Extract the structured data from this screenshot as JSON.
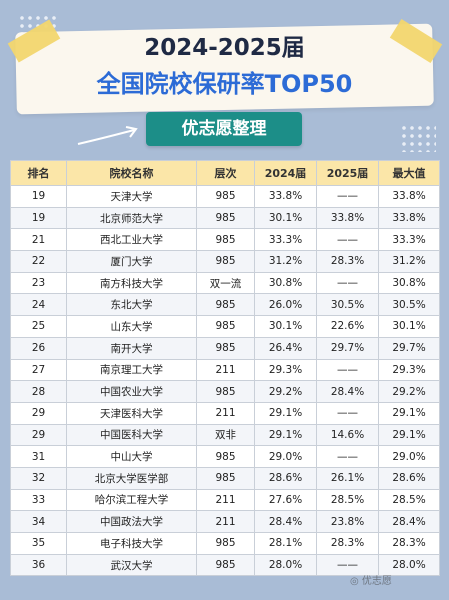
{
  "header": {
    "title_line1": "2024-2025届",
    "title_line2": "全国院校保研率TOP50",
    "subtitle": "优志愿整理"
  },
  "table": {
    "columns": [
      "排名",
      "院校名称",
      "层次",
      "2024届",
      "2025届",
      "最大值"
    ],
    "rows": [
      [
        "19",
        "天津大学",
        "985",
        "33.8%",
        "——",
        "33.8%"
      ],
      [
        "19",
        "北京师范大学",
        "985",
        "30.1%",
        "33.8%",
        "33.8%"
      ],
      [
        "21",
        "西北工业大学",
        "985",
        "33.3%",
        "——",
        "33.3%"
      ],
      [
        "22",
        "厦门大学",
        "985",
        "31.2%",
        "28.3%",
        "31.2%"
      ],
      [
        "23",
        "南方科技大学",
        "双一流",
        "30.8%",
        "——",
        "30.8%"
      ],
      [
        "24",
        "东北大学",
        "985",
        "26.0%",
        "30.5%",
        "30.5%"
      ],
      [
        "25",
        "山东大学",
        "985",
        "30.1%",
        "22.6%",
        "30.1%"
      ],
      [
        "26",
        "南开大学",
        "985",
        "26.4%",
        "29.7%",
        "29.7%"
      ],
      [
        "27",
        "南京理工大学",
        "211",
        "29.3%",
        "——",
        "29.3%"
      ],
      [
        "28",
        "中国农业大学",
        "985",
        "29.2%",
        "28.4%",
        "29.2%"
      ],
      [
        "29",
        "天津医科大学",
        "211",
        "29.1%",
        "——",
        "29.1%"
      ],
      [
        "29",
        "中国医科大学",
        "双非",
        "29.1%",
        "14.6%",
        "29.1%"
      ],
      [
        "31",
        "中山大学",
        "985",
        "29.0%",
        "——",
        "29.0%"
      ],
      [
        "32",
        "北京大学医学部",
        "985",
        "28.6%",
        "26.1%",
        "28.6%"
      ],
      [
        "33",
        "哈尔滨工程大学",
        "211",
        "27.6%",
        "28.5%",
        "28.5%"
      ],
      [
        "34",
        "中国政法大学",
        "211",
        "28.4%",
        "23.8%",
        "28.4%"
      ],
      [
        "35",
        "电子科技大学",
        "985",
        "28.1%",
        "28.3%",
        "28.3%"
      ],
      [
        "36",
        "武汉大学",
        "985",
        "28.0%",
        "——",
        "28.0%"
      ]
    ]
  },
  "colors": {
    "background": "#a9bcd6",
    "title_dark": "#1f2a44",
    "title_blue": "#2c6bd6",
    "pill": "#1c8e88",
    "header_row": "#fbe6a8",
    "tape": "#f2d66e"
  }
}
